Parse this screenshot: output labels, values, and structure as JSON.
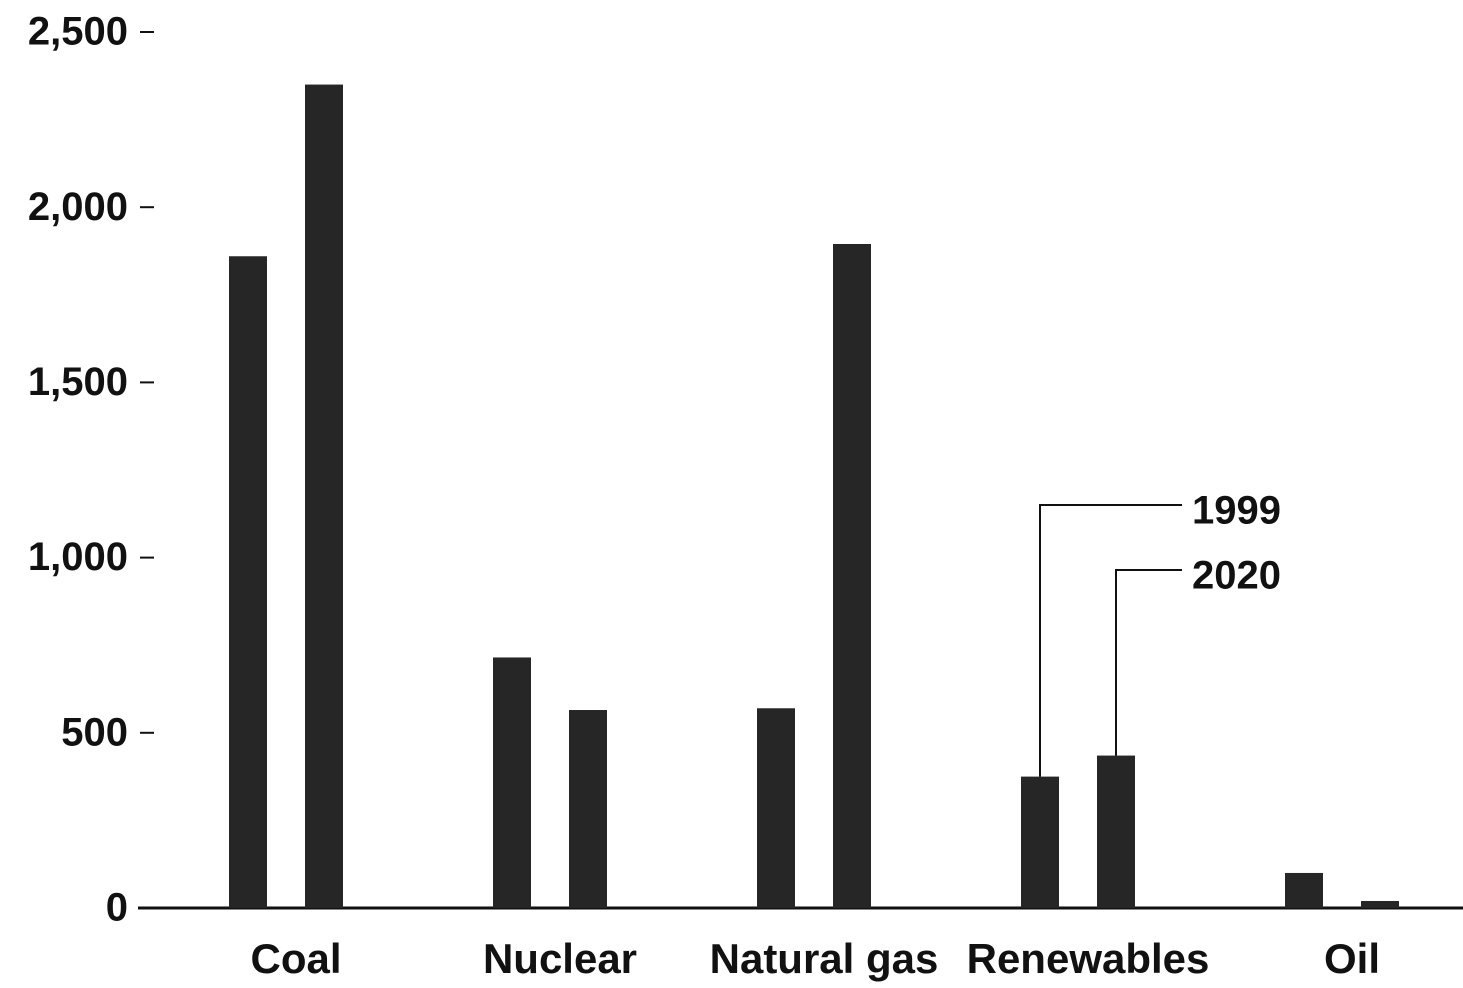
{
  "chart_data": {
    "type": "bar",
    "categories": [
      "Coal",
      "Nuclear",
      "Natural gas",
      "Renewables",
      "Oil"
    ],
    "series": [
      {
        "name": "1999",
        "color": "#262626",
        "values": [
          1860,
          715,
          570,
          375,
          100
        ]
      },
      {
        "name": "2020",
        "color": "#262626",
        "values": [
          2350,
          565,
          1895,
          435,
          20
        ]
      }
    ],
    "ylim": [
      0,
      2500
    ],
    "yticks": [
      0,
      500,
      {
        "value": 1000,
        "label": "1,000"
      },
      {
        "value": 1500,
        "label": "1,500"
      },
      {
        "value": 2000,
        "label": "2,000"
      },
      {
        "value": 2500,
        "label": "2,500"
      }
    ],
    "grid": false
  }
}
